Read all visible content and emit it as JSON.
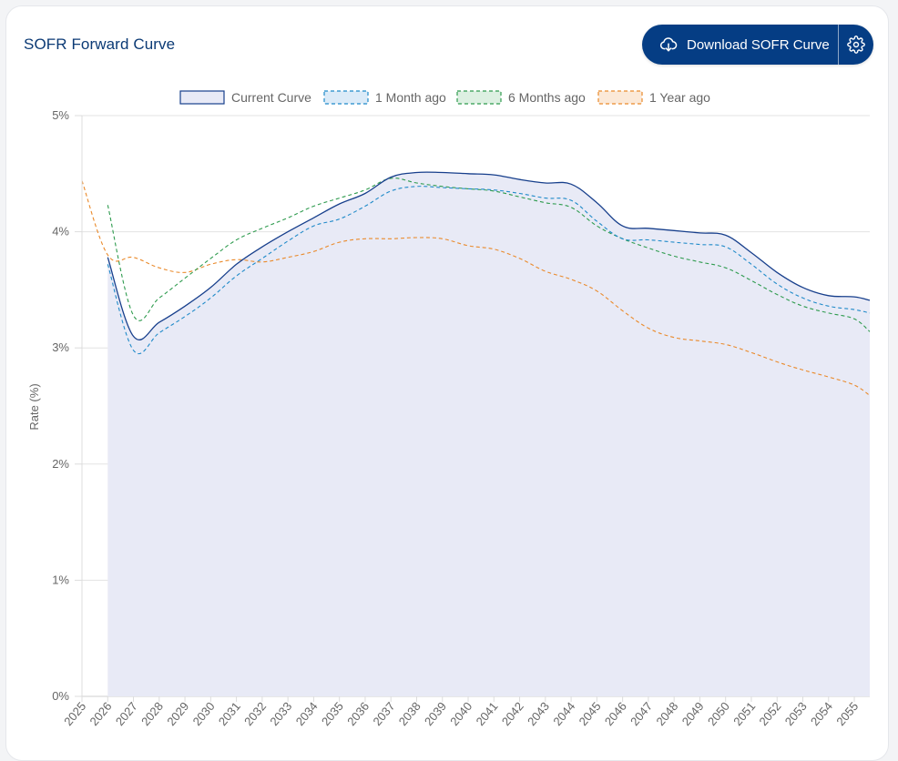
{
  "header": {
    "title": "SOFR Forward Curve",
    "download_label": "Download SOFR Curve",
    "download_icon": "cloud-download-icon",
    "settings_icon": "gear-icon"
  },
  "colors": {
    "current": "#173f8c",
    "current_fill": "#e8eaf6",
    "month": "#1f8ac9",
    "six_months": "#2e9b4e",
    "year": "#ea8a2b",
    "button": "#053d84"
  },
  "chart_data": {
    "type": "line",
    "title": "",
    "xlabel": "",
    "ylabel": "Rate (%)",
    "ylim": [
      0,
      5
    ],
    "yticks": [
      "0%",
      "1%",
      "2%",
      "3%",
      "4%",
      "5%"
    ],
    "grid": true,
    "legend_position": "top",
    "x": [
      2025,
      2026,
      2027,
      2028,
      2029,
      2030,
      2031,
      2032,
      2033,
      2034,
      2035,
      2036,
      2037,
      2038,
      2039,
      2040,
      2041,
      2042,
      2043,
      2044,
      2045,
      2046,
      2047,
      2048,
      2049,
      2050,
      2051,
      2052,
      2053,
      2054,
      2055,
      2055.6
    ],
    "xtick_labels": [
      "2025",
      "2026",
      "2027",
      "2028",
      "2029",
      "2030",
      "2031",
      "2032",
      "2033",
      "2034",
      "2035",
      "2036",
      "2037",
      "2038",
      "2039",
      "2040",
      "2041",
      "2042",
      "2043",
      "2044",
      "2045",
      "2046",
      "2047",
      "2048",
      "2049",
      "2050",
      "2051",
      "2052",
      "2053",
      "2054",
      "2055"
    ],
    "series": [
      {
        "name": "Current Curve",
        "style": "solid-filled",
        "values": [
          null,
          3.78,
          3.1,
          3.22,
          3.36,
          3.52,
          3.72,
          3.87,
          4.0,
          4.12,
          4.24,
          4.33,
          4.47,
          4.51,
          4.51,
          4.5,
          4.49,
          4.45,
          4.42,
          4.41,
          4.25,
          4.05,
          4.03,
          4.01,
          3.99,
          3.97,
          3.82,
          3.65,
          3.52,
          3.45,
          3.44,
          3.41
        ]
      },
      {
        "name": "1 Month ago",
        "style": "dashed",
        "values": [
          null,
          3.72,
          2.98,
          3.13,
          3.27,
          3.43,
          3.62,
          3.77,
          3.92,
          4.05,
          4.11,
          4.22,
          4.35,
          4.39,
          4.38,
          4.37,
          4.36,
          4.33,
          4.29,
          4.27,
          4.09,
          3.94,
          3.93,
          3.91,
          3.89,
          3.87,
          3.72,
          3.55,
          3.43,
          3.36,
          3.33,
          3.3
        ]
      },
      {
        "name": "6 Months ago",
        "style": "dashed",
        "values": [
          null,
          4.23,
          3.28,
          3.43,
          3.6,
          3.77,
          3.93,
          4.03,
          4.12,
          4.22,
          4.29,
          4.36,
          4.46,
          4.42,
          4.39,
          4.37,
          4.35,
          4.3,
          4.25,
          4.21,
          4.05,
          3.94,
          3.86,
          3.79,
          3.74,
          3.69,
          3.58,
          3.46,
          3.36,
          3.3,
          3.25,
          3.14
        ]
      },
      {
        "name": "1 Year ago",
        "style": "dashed",
        "values": [
          4.44,
          3.8,
          3.78,
          3.69,
          3.65,
          3.72,
          3.76,
          3.74,
          3.78,
          3.83,
          3.91,
          3.94,
          3.94,
          3.95,
          3.94,
          3.88,
          3.85,
          3.77,
          3.66,
          3.59,
          3.49,
          3.32,
          3.17,
          3.09,
          3.06,
          3.03,
          2.96,
          2.88,
          2.81,
          2.75,
          2.68,
          2.59
        ]
      }
    ]
  }
}
